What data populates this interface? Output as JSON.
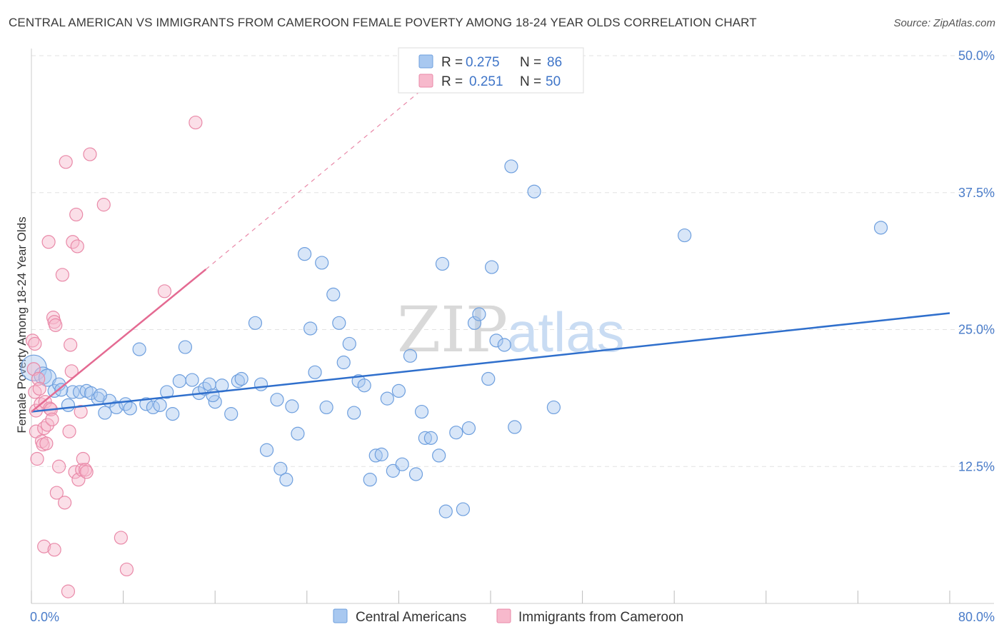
{
  "header": {
    "title": "CENTRAL AMERICAN VS IMMIGRANTS FROM CAMEROON FEMALE POVERTY AMONG 18-24 YEAR OLDS CORRELATION CHART",
    "source": "Source: ZipAtlas.com"
  },
  "watermark": {
    "part1": "ZIP",
    "part2": "atlas"
  },
  "legend": {
    "r_label": "R =",
    "n_label": "N =",
    "rows": [
      {
        "r": "0.275",
        "n": "86"
      },
      {
        "r": "0.251",
        "n": "50"
      }
    ]
  },
  "colors": {
    "blue_fill": "#a8c8f0",
    "blue_stroke": "#6e9fde",
    "blue_line": "#2f6fcc",
    "pink_fill": "#f7b9cc",
    "pink_stroke": "#e989a8",
    "pink_line": "#e46a92",
    "grid": "#e2e2e2",
    "tick_text": "#4a7cc9"
  },
  "chart_data": {
    "type": "scatter",
    "title": "CENTRAL AMERICAN VS IMMIGRANTS FROM CAMEROON FEMALE POVERTY AMONG 18-24 YEAR OLDS CORRELATION CHART",
    "xlabel": "",
    "ylabel": "Female Poverty Among 18-24 Year Olds",
    "xlim": [
      0,
      80
    ],
    "ylim": [
      0,
      50
    ],
    "x_tick_labels": [
      "0.0%",
      "80.0%"
    ],
    "y_tick_labels": [
      "12.5%",
      "25.0%",
      "37.5%",
      "50.0%"
    ],
    "y_tick_values": [
      12.5,
      25.0,
      37.5,
      50.0
    ],
    "grid": true,
    "legend_position": "top-center",
    "series": [
      {
        "name": "Central Americans",
        "r": 0.275,
        "n": 86,
        "trend": {
          "x": [
            0,
            80
          ],
          "y": [
            17.5,
            26.5
          ]
        },
        "points": [
          [
            0.2,
            21.5
          ],
          [
            1,
            20.8
          ],
          [
            1.4,
            20.6
          ],
          [
            2,
            19.4
          ],
          [
            2.4,
            20.0
          ],
          [
            3.2,
            18.1
          ],
          [
            3.6,
            19.3
          ],
          [
            4.2,
            19.3
          ],
          [
            4.8,
            19.4
          ],
          [
            5.2,
            19.2
          ],
          [
            5.8,
            18.7
          ],
          [
            6.4,
            17.4
          ],
          [
            6.8,
            18.5
          ],
          [
            7.4,
            17.9
          ],
          [
            8.2,
            18.2
          ],
          [
            8.6,
            17.8
          ],
          [
            9.4,
            23.2
          ],
          [
            10,
            18.2
          ],
          [
            10.6,
            17.9
          ],
          [
            11.2,
            18.1
          ],
          [
            11.8,
            19.3
          ],
          [
            12.3,
            17.3
          ],
          [
            12.9,
            20.3
          ],
          [
            13.4,
            23.4
          ],
          [
            14,
            20.4
          ],
          [
            14.6,
            19.2
          ],
          [
            15.1,
            19.6
          ],
          [
            15.5,
            20.0
          ],
          [
            16.0,
            18.4
          ],
          [
            16.6,
            19.9
          ],
          [
            17.4,
            17.3
          ],
          [
            18.0,
            20.3
          ],
          [
            18.3,
            20.5
          ],
          [
            19.5,
            25.6
          ],
          [
            20.0,
            20.0
          ],
          [
            20.5,
            14.0
          ],
          [
            21.4,
            18.6
          ],
          [
            21.7,
            12.3
          ],
          [
            22.2,
            11.3
          ],
          [
            22.7,
            18.0
          ],
          [
            23.2,
            15.5
          ],
          [
            23.8,
            31.9
          ],
          [
            24.3,
            25.1
          ],
          [
            24.7,
            21.1
          ],
          [
            25.3,
            31.1
          ],
          [
            25.7,
            17.9
          ],
          [
            26.3,
            28.2
          ],
          [
            26.8,
            25.6
          ],
          [
            27.2,
            22.0
          ],
          [
            27.7,
            23.7
          ],
          [
            28.1,
            17.4
          ],
          [
            28.5,
            20.3
          ],
          [
            29.0,
            19.9
          ],
          [
            29.5,
            11.3
          ],
          [
            30.0,
            13.5
          ],
          [
            30.5,
            13.6
          ],
          [
            31.0,
            18.7
          ],
          [
            31.5,
            12.1
          ],
          [
            32.0,
            19.4
          ],
          [
            32.3,
            12.7
          ],
          [
            33.0,
            22.6
          ],
          [
            33.5,
            11.8
          ],
          [
            34.0,
            17.5
          ],
          [
            34.3,
            15.1
          ],
          [
            34.8,
            15.1
          ],
          [
            35.5,
            13.5
          ],
          [
            35.8,
            31.0
          ],
          [
            36.1,
            8.4
          ],
          [
            37.0,
            15.6
          ],
          [
            37.6,
            8.6
          ],
          [
            38.1,
            16.0
          ],
          [
            38.6,
            25.6
          ],
          [
            39.0,
            26.4
          ],
          [
            39.8,
            20.5
          ],
          [
            40.1,
            30.7
          ],
          [
            40.5,
            24.0
          ],
          [
            41.2,
            23.6
          ],
          [
            41.8,
            39.9
          ],
          [
            42.1,
            16.1
          ],
          [
            43.8,
            37.6
          ],
          [
            45.5,
            17.9
          ],
          [
            56.9,
            33.6
          ],
          [
            74.0,
            34.3
          ],
          [
            2.6,
            19.5
          ],
          [
            6.0,
            19.0
          ],
          [
            15.8,
            19.0
          ]
        ]
      },
      {
        "name": "Immigrants from Cameroon",
        "r": 0.251,
        "n": 50,
        "trend": {
          "x": [
            0,
            15.2
          ],
          "y": [
            17.5,
            30.5
          ]
        },
        "trend_extension": {
          "x": [
            15.2,
            34.6
          ],
          "y": [
            30.5,
            47.4
          ]
        },
        "points": [
          [
            0.1,
            24.0
          ],
          [
            0.2,
            21.4
          ],
          [
            0.3,
            19.3
          ],
          [
            0.4,
            17.6
          ],
          [
            0.4,
            15.7
          ],
          [
            0.5,
            13.2
          ],
          [
            0.6,
            20.5
          ],
          [
            0.7,
            19.6
          ],
          [
            0.8,
            18.2
          ],
          [
            0.9,
            14.8
          ],
          [
            1.0,
            14.5
          ],
          [
            1.1,
            16.0
          ],
          [
            1.2,
            18.4
          ],
          [
            1.3,
            14.6
          ],
          [
            1.4,
            16.3
          ],
          [
            1.5,
            33.0
          ],
          [
            1.6,
            17.8
          ],
          [
            1.7,
            17.7
          ],
          [
            1.8,
            16.8
          ],
          [
            1.9,
            26.1
          ],
          [
            2.0,
            25.7
          ],
          [
            2.1,
            25.4
          ],
          [
            2.2,
            10.1
          ],
          [
            2.4,
            12.5
          ],
          [
            2.7,
            30.0
          ],
          [
            2.9,
            9.2
          ],
          [
            3.0,
            40.3
          ],
          [
            3.2,
            1.1
          ],
          [
            3.3,
            15.7
          ],
          [
            3.4,
            23.6
          ],
          [
            3.5,
            21.2
          ],
          [
            3.6,
            33.0
          ],
          [
            3.8,
            12.0
          ],
          [
            3.9,
            35.5
          ],
          [
            4.0,
            32.6
          ],
          [
            4.1,
            11.3
          ],
          [
            4.3,
            17.5
          ],
          [
            4.4,
            12.2
          ],
          [
            4.5,
            13.2
          ],
          [
            4.7,
            12.2
          ],
          [
            4.8,
            12.0
          ],
          [
            5.1,
            41.0
          ],
          [
            6.3,
            36.4
          ],
          [
            7.8,
            6.0
          ],
          [
            8.3,
            3.1
          ],
          [
            11.6,
            28.5
          ],
          [
            14.3,
            43.9
          ],
          [
            0.3,
            23.7
          ],
          [
            1.1,
            5.2
          ],
          [
            2.0,
            4.9
          ]
        ]
      }
    ]
  }
}
